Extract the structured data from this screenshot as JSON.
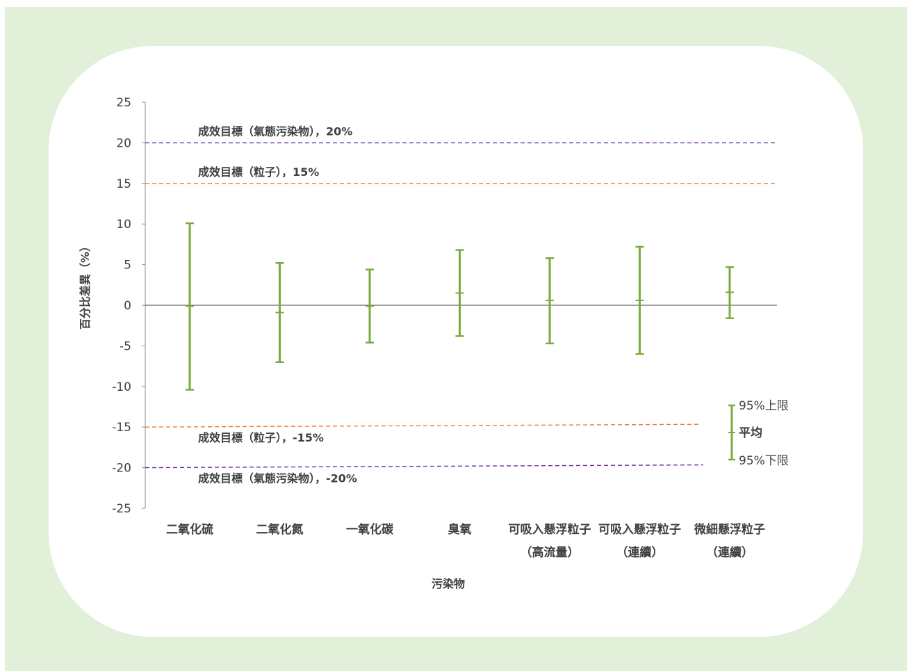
{
  "chart_data": {
    "type": "errorbar",
    "xlabel": "污染物",
    "ylabel": "百分比差異（%）",
    "ylim": [
      -25,
      25
    ],
    "yticks": [
      25,
      20,
      15,
      10,
      5,
      0,
      -5,
      -10,
      -15,
      -20,
      -25
    ],
    "categories": [
      [
        "二氧化硫"
      ],
      [
        "二氧化氮"
      ],
      [
        "一氧化碳"
      ],
      [
        "臭氧"
      ],
      [
        "可吸入懸浮粒子",
        "（高流量）"
      ],
      [
        "可吸入懸浮粒子",
        "（連續）"
      ],
      [
        "微細懸浮粒子",
        "（連續）"
      ]
    ],
    "series": [
      {
        "name": "95%上限",
        "values": [
          10.1,
          5.2,
          4.4,
          6.8,
          5.8,
          7.2,
          4.7
        ]
      },
      {
        "name": "平均",
        "values": [
          -0.1,
          -0.9,
          -0.1,
          1.5,
          0.6,
          0.6,
          1.6
        ]
      },
      {
        "name": "95%下限",
        "values": [
          -10.4,
          -7.0,
          -4.6,
          -3.8,
          -4.7,
          -6.0,
          -1.6
        ]
      }
    ],
    "reference_lines": [
      {
        "label": "成效目標（氣態污染物），20%",
        "value": 20,
        "color": "#7030a0"
      },
      {
        "label": "成效目標（粒子），15%",
        "value": 15,
        "color": "#ed7d31"
      },
      {
        "label": "成效目標（粒子），-15%",
        "value": -15,
        "color": "#ed7d31"
      },
      {
        "label": "成效目標（氣態污染物），-20%",
        "value": -20,
        "color": "#7030a0"
      }
    ],
    "legend": {
      "position": "bottom-right",
      "upper": "95%上限",
      "mean": "平均",
      "lower": "95%下限"
    },
    "colors": {
      "bar": "#7aab3e",
      "axis": "#7f7f7f",
      "zero": "#404040"
    }
  }
}
